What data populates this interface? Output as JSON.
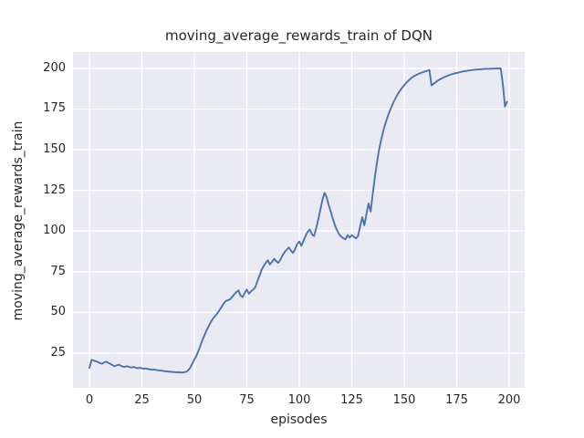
{
  "chart_data": {
    "type": "line",
    "title": "moving_average_rewards_train of DQN",
    "xlabel": "episodes",
    "ylabel": "moving_average_rewards_train",
    "x_ticks": [
      0,
      25,
      50,
      75,
      100,
      125,
      150,
      175,
      200
    ],
    "y_ticks": [
      25,
      50,
      75,
      100,
      125,
      150,
      175,
      200
    ],
    "grid": true,
    "legend": "none",
    "series": [
      {
        "name": "moving_average_rewards_train",
        "x_start": 0,
        "x_step": 1,
        "values": [
          16.0,
          20.8,
          20.5,
          20.0,
          19.6,
          18.9,
          18.5,
          19.3,
          19.8,
          19.0,
          18.4,
          17.6,
          17.0,
          17.5,
          17.9,
          17.3,
          16.7,
          16.6,
          17.0,
          16.4,
          16.2,
          16.5,
          16.1,
          15.8,
          16.0,
          15.7,
          15.4,
          15.6,
          15.2,
          15.0,
          14.8,
          14.9,
          14.6,
          14.4,
          14.3,
          14.1,
          13.9,
          13.8,
          13.6,
          13.5,
          13.4,
          13.3,
          13.2,
          13.2,
          13.1,
          13.2,
          13.5,
          14.3,
          16.0,
          18.5,
          21.0,
          23.5,
          26.5,
          30.0,
          33.5,
          36.5,
          39.5,
          42.0,
          44.5,
          46.5,
          48.0,
          49.5,
          51.5,
          53.5,
          55.5,
          57.0,
          57.5,
          58.0,
          59.5,
          61.0,
          62.5,
          63.5,
          60.5,
          59.5,
          62.0,
          64.0,
          61.5,
          63.0,
          64.0,
          65.5,
          69.0,
          72.5,
          76.0,
          78.5,
          80.5,
          82.0,
          79.5,
          81.0,
          83.0,
          81.5,
          80.5,
          82.5,
          85.0,
          87.0,
          88.5,
          90.0,
          88.0,
          86.5,
          89.0,
          92.0,
          93.5,
          91.0,
          94.0,
          97.0,
          99.5,
          101.0,
          98.0,
          97.0,
          101.5,
          107.0,
          113.0,
          119.0,
          123.5,
          121.0,
          116.0,
          112.0,
          107.5,
          103.5,
          100.5,
          98.0,
          96.5,
          95.5,
          95.0,
          97.5,
          96.0,
          97.5,
          96.5,
          95.5,
          97.0,
          103.0,
          108.5,
          103.5,
          110.5,
          117.0,
          112.0,
          123.0,
          133.0,
          142.0,
          150.0,
          156.0,
          161.5,
          166.0,
          170.0,
          173.5,
          176.5,
          179.5,
          182.0,
          184.3,
          186.3,
          188.1,
          189.7,
          191.2,
          192.5,
          193.6,
          194.6,
          195.4,
          196.1,
          196.7,
          197.2,
          197.7,
          198.1,
          198.5,
          199.0,
          189.5,
          190.5,
          191.5,
          192.5,
          193.2,
          193.9,
          194.5,
          195.1,
          195.6,
          196.1,
          196.5,
          196.9,
          197.2,
          197.5,
          197.8,
          198.1,
          198.3,
          198.5,
          198.7,
          198.9,
          199.1,
          199.2,
          199.3,
          199.4,
          199.5,
          199.6,
          199.7,
          199.7,
          199.8,
          199.8,
          199.9,
          199.9,
          199.9,
          199.9,
          190.0,
          176.5,
          179.5
        ]
      }
    ],
    "colors": {
      "line": "#4c72b0",
      "axes_background": "#eaeaf2",
      "gridline": "#ffffff",
      "text": "#262626",
      "figure_background": "#ffffff"
    }
  }
}
